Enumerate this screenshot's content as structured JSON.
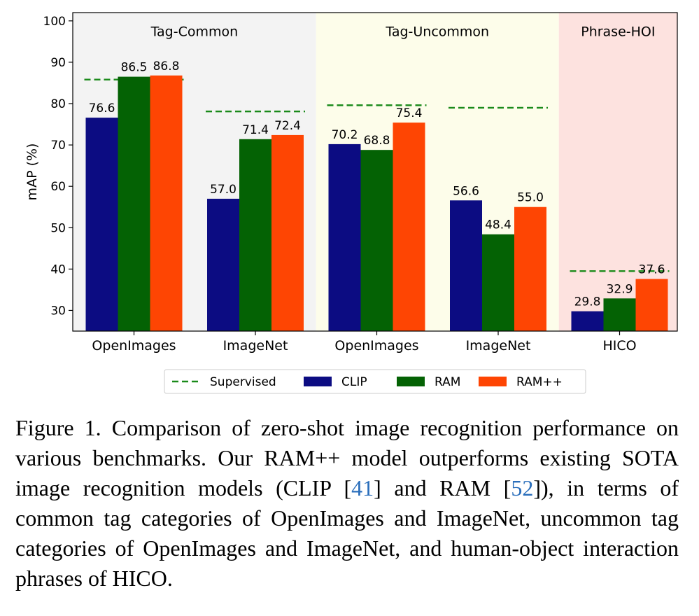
{
  "chart_data": {
    "type": "bar",
    "ylabel": "mAP (%)",
    "xlabel": "",
    "ylim": [
      25,
      102
    ],
    "yticks": [
      30,
      40,
      50,
      60,
      70,
      80,
      90,
      100
    ],
    "groups": [
      "OpenImages",
      "ImageNet",
      "OpenImages",
      "ImageNet",
      "HICO"
    ],
    "regions": [
      {
        "label": "Tag-Common",
        "groups": [
          0,
          1
        ],
        "color": "#f3f3f3"
      },
      {
        "label": "Tag-Uncommon",
        "groups": [
          2,
          3
        ],
        "color": "#fdfdea"
      },
      {
        "label": "Phrase-HOI",
        "groups": [
          4
        ],
        "color": "#fde2df"
      }
    ],
    "series": [
      {
        "name": "CLIP",
        "color": "#0c0c82",
        "values": [
          76.6,
          57.0,
          70.2,
          56.6,
          29.8
        ]
      },
      {
        "name": "RAM",
        "color": "#046204",
        "values": [
          86.5,
          71.4,
          68.8,
          48.4,
          32.9
        ]
      },
      {
        "name": "RAM++",
        "color": "#fe4503",
        "values": [
          86.8,
          72.4,
          75.4,
          55.0,
          37.6
        ]
      }
    ],
    "supervised": {
      "name": "Supervised",
      "color": "#1a8a1a",
      "values": [
        85.8,
        78.1,
        79.6,
        79.0,
        39.5
      ]
    },
    "legend": [
      "Supervised",
      "CLIP",
      "RAM",
      "RAM++"
    ],
    "legend_position": "bottom-center"
  },
  "caption": {
    "prefix": "Figure 1. Comparison of zero-shot image recognition performance on various benchmarks. Our RAM++ model outperforms existing SOTA image recognition models (CLIP [",
    "ref1": "41",
    "mid": "] and RAM [",
    "ref2": "52",
    "suffix": "]), in terms of common tag categories of OpenImages and ImageNet, uncommon tag categories of OpenImages and ImageNet, and human-object interaction phrases of HICO."
  }
}
